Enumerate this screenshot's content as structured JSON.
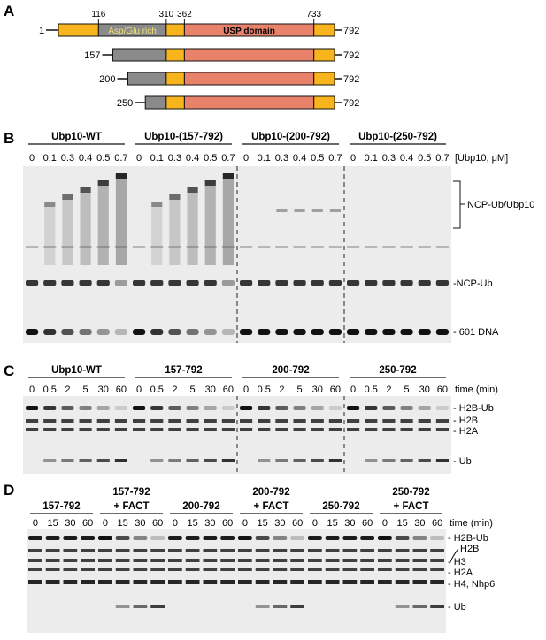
{
  "panelA": {
    "letter": "A",
    "start_label": "1",
    "end_label": "792",
    "positions": [
      "116",
      "310",
      "362",
      "733"
    ],
    "region_labels": [
      "Asp/Glu rich",
      "USP domain"
    ],
    "constructs": [
      "157",
      "200",
      "250"
    ],
    "colors": {
      "orange": "#f7b41c",
      "gray": "#8a8a8a",
      "salmon": "#e8826a",
      "yellow_text": "#f0e070"
    }
  },
  "panelB": {
    "letter": "B",
    "groups": [
      "Ubp10-WT",
      "Ubp10-(157-792)",
      "Ubp10-(200-792)",
      "Ubp10-(250-792)"
    ],
    "concentrations": [
      "0",
      "0.1",
      "0.3",
      "0.4",
      "0.5",
      "0.7"
    ],
    "axis_label": "[Ubp10, μM]",
    "band_labels": [
      "NCP-Ub/Ubp10",
      "-NCP-Ub",
      "- 601 DNA"
    ]
  },
  "panelC": {
    "letter": "C",
    "groups": [
      "Ubp10-WT",
      "157-792",
      "200-792",
      "250-792"
    ],
    "times": [
      "0",
      "0.5",
      "2",
      "5",
      "30",
      "60"
    ],
    "axis_label": "time (min)",
    "band_labels": [
      "- H2B-Ub",
      "- H2B",
      "- H2A",
      "- Ub"
    ]
  },
  "panelD": {
    "letter": "D",
    "groups": [
      {
        "line1": "157-792",
        "line2": ""
      },
      {
        "line1": "157-792",
        "line2": "+ FACT"
      },
      {
        "line1": "200-792",
        "line2": ""
      },
      {
        "line1": "200-792",
        "line2": "+ FACT"
      },
      {
        "line1": "250-792",
        "line2": ""
      },
      {
        "line1": "250-792",
        "line2": "+ FACT"
      }
    ],
    "times": [
      "0",
      "15",
      "30",
      "60"
    ],
    "axis_label": "time (min)",
    "band_labels": [
      "- H2B-Ub",
      "H2B",
      "- H3",
      "- H2A",
      "- H4, Nhp6",
      "- Ub"
    ]
  }
}
